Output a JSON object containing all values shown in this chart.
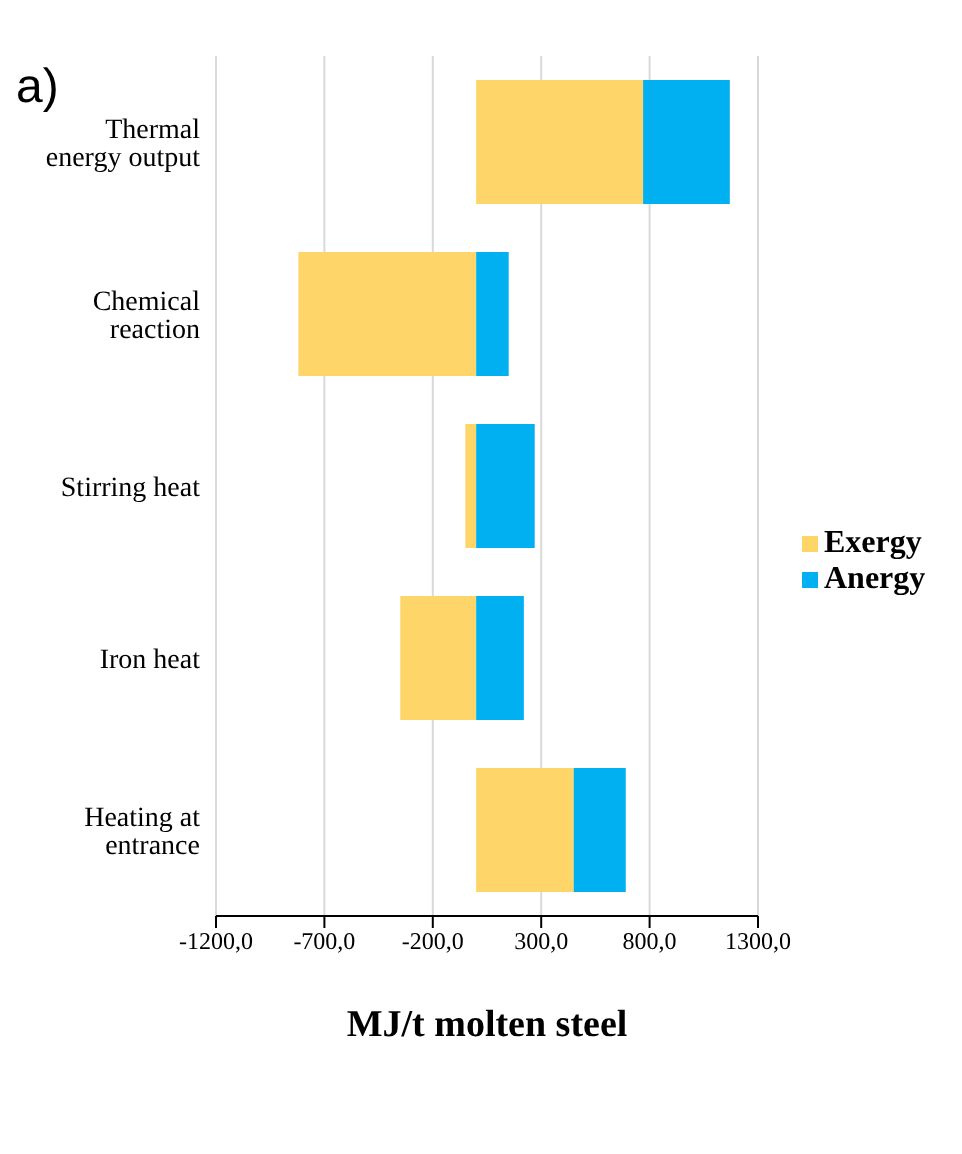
{
  "chart_data": {
    "type": "bar",
    "orientation": "horizontal",
    "stacked": true,
    "categories": [
      "Thermal  energy output",
      "Chemical reaction",
      "Stirring  heat",
      "Iron heat",
      "Heating  at entrance"
    ],
    "series": [
      {
        "name": "Exergy",
        "color": "#fdd568",
        "values": [
          770,
          -820,
          -50,
          -350,
          450
        ]
      },
      {
        "name": "Anergy",
        "color": "#00b0f0",
        "values": [
          400,
          150,
          270,
          220,
          240
        ]
      }
    ],
    "xlabel": "MJ/t molten steel",
    "xlim": [
      -1200,
      1300
    ],
    "xticks": [
      {
        "value": -1200,
        "label": "-1200,0"
      },
      {
        "value": -700,
        "label": "-700,0"
      },
      {
        "value": -200,
        "label": "-200,0"
      },
      {
        "value": 300,
        "label": "300,0"
      },
      {
        "value": 800,
        "label": "800,0"
      },
      {
        "value": 1300,
        "label": "1300,0"
      }
    ],
    "grid": "x",
    "legend": "right",
    "annotations": [
      "a)"
    ]
  }
}
